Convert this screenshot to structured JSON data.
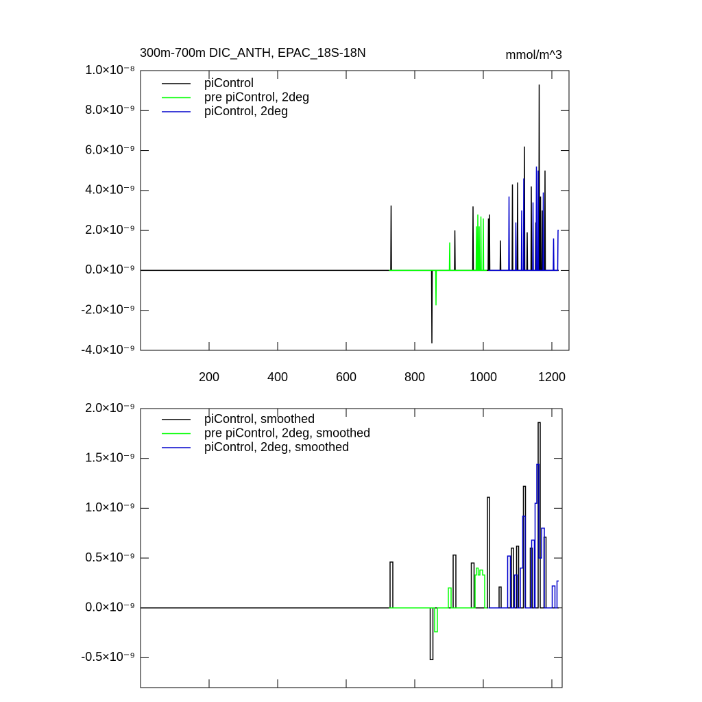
{
  "chart_data": [
    {
      "type": "line",
      "title": "300m-700m DIC_ANTH, EPAC_18S-18N",
      "y_units": "mmol/m^3",
      "xlim": [
        0,
        1250
      ],
      "xticks": [
        200,
        400,
        600,
        800,
        1000,
        1200
      ],
      "ylim": [
        -4e-09,
        1e-08
      ],
      "yticks": [
        {
          "value": -4e-09,
          "label": "-4.0×10⁻⁹"
        },
        {
          "value": -2e-09,
          "label": "-2.0×10⁻⁹"
        },
        {
          "value": 0,
          "label": "0.0×10⁻⁹"
        },
        {
          "value": 2e-09,
          "label": "2.0×10⁻⁹"
        },
        {
          "value": 4e-09,
          "label": "4.0×10⁻⁹"
        },
        {
          "value": 6e-09,
          "label": "6.0×10⁻⁹"
        },
        {
          "value": 8e-09,
          "label": "8.0×10⁻⁹"
        },
        {
          "value": 1e-08,
          "label": "1.0×10⁻⁸"
        }
      ],
      "series": [
        {
          "name": "piControl",
          "color": "#000000",
          "x": [
            0,
            730,
            731,
            732,
            849,
            850,
            851,
            916,
            917,
            918,
            969,
            970,
            971,
            1014,
            1015,
            1016,
            1017,
            1018,
            1019,
            1049,
            1050,
            1051,
            1084,
            1085,
            1086,
            1099,
            1100,
            1101,
            1119,
            1120,
            1121,
            1127,
            1128,
            1129,
            1139,
            1140,
            1141,
            1152,
            1153,
            1154,
            1162,
            1163,
            1164,
            1166,
            1167,
            1168,
            1171,
            1172,
            1173,
            1179,
            1180,
            1181,
            1220
          ],
          "values": [
            0,
            0,
            3.25e-09,
            0,
            0,
            -3.65e-09,
            0,
            0,
            2e-09,
            0,
            0,
            3.2e-09,
            0,
            0,
            2.6e-09,
            0,
            0,
            2.8e-09,
            0,
            0,
            1.5e-09,
            0,
            0,
            4.3e-09,
            0,
            0,
            4.4e-09,
            0,
            0,
            6.2e-09,
            0,
            0,
            1.9e-09,
            0,
            0,
            4.2e-09,
            0,
            0,
            2.4e-09,
            0,
            0,
            9.3e-09,
            0,
            0,
            3.7e-09,
            0,
            0,
            3e-09,
            0,
            0,
            5e-09,
            0,
            0
          ]
        },
        {
          "name": "pre piControl, 2deg",
          "color": "#00ff00",
          "x": [
            725,
            861,
            862,
            863,
            901,
            902,
            903,
            979,
            980,
            981,
            983,
            984,
            985,
            987,
            988,
            989,
            992,
            993,
            994,
            999,
            1000,
            1001,
            1010
          ],
          "values": [
            0,
            0,
            -1.75e-09,
            0,
            0,
            1.4e-09,
            0,
            0,
            2.2e-09,
            0,
            0,
            2.8e-09,
            0,
            0,
            2.2e-09,
            0,
            0,
            2.7e-09,
            0,
            0,
            2.6e-09,
            0,
            0
          ]
        },
        {
          "name": "piControl, 2deg",
          "color": "#0000cc",
          "x": [
            1015,
            1074,
            1075,
            1076,
            1094,
            1095,
            1096,
            1111,
            1112,
            1113,
            1117,
            1118,
            1119,
            1144,
            1145,
            1146,
            1154,
            1155,
            1156,
            1159,
            1160,
            1161,
            1174,
            1175,
            1176,
            1204,
            1205,
            1206,
            1217,
            1218,
            1220
          ],
          "values": [
            0,
            0,
            3.7e-09,
            0,
            0,
            2.4e-09,
            0,
            0,
            3e-09,
            0,
            0,
            4.6e-09,
            0,
            0,
            3.4e-09,
            0,
            0,
            5.2e-09,
            0,
            0,
            5e-09,
            0,
            0,
            3.9e-09,
            0,
            0,
            1.6e-09,
            0,
            0,
            2e-09,
            2e-09
          ]
        }
      ]
    },
    {
      "type": "line",
      "xlim": [
        0,
        1230
      ],
      "xticks": [
        200,
        400,
        600,
        800,
        1000,
        1200
      ],
      "ylim": [
        -8e-10,
        2e-09
      ],
      "yticks": [
        {
          "value": -5e-10,
          "label": "-0.5×10⁻⁹"
        },
        {
          "value": 0,
          "label": "0.0×10⁻⁹"
        },
        {
          "value": 5e-10,
          "label": "0.5×10⁻⁹"
        },
        {
          "value": 1e-09,
          "label": "1.0×10⁻⁹"
        },
        {
          "value": 1.5e-09,
          "label": "1.5×10⁻⁹"
        },
        {
          "value": 2e-09,
          "label": "2.0×10⁻⁹"
        }
      ],
      "series": [
        {
          "name": "piControl, smoothed",
          "color": "#000000",
          "x": [
            0,
            728,
            728,
            736,
            736,
            845,
            845,
            853,
            853,
            912,
            912,
            920,
            920,
            965,
            965,
            973,
            973,
            1012,
            1012,
            1018,
            1018,
            1046,
            1046,
            1052,
            1052,
            1082,
            1082,
            1088,
            1088,
            1097,
            1097,
            1103,
            1103,
            1117,
            1117,
            1123,
            1123,
            1137,
            1137,
            1143,
            1143,
            1160,
            1160,
            1166,
            1166,
            1177,
            1177,
            1183,
            1183,
            1220
          ],
          "values": [
            0,
            0,
            4.6e-10,
            4.6e-10,
            0,
            0,
            -5.2e-10,
            -5.2e-10,
            0,
            0,
            5.3e-10,
            5.3e-10,
            0,
            0,
            4.5e-10,
            4.5e-10,
            0,
            0,
            1.11e-09,
            1.11e-09,
            0,
            0,
            2.1e-10,
            2.1e-10,
            0,
            0,
            6e-10,
            6e-10,
            0,
            0,
            6.2e-10,
            6.2e-10,
            0,
            0,
            1.22e-09,
            1.22e-09,
            0,
            0,
            6e-10,
            6e-10,
            0,
            0,
            1.86e-09,
            1.86e-09,
            0,
            0,
            7.1e-10,
            7.1e-10,
            0,
            0
          ]
        },
        {
          "name": "pre piControl, 2deg, smoothed",
          "color": "#00ff00",
          "x": [
            725,
            858,
            858,
            866,
            866,
            898,
            898,
            906,
            906,
            976,
            976,
            980,
            980,
            985,
            985,
            990,
            990,
            998,
            998,
            1004,
            1004,
            1010
          ],
          "values": [
            0,
            0,
            -2.4e-10,
            -2.4e-10,
            0,
            0,
            2e-10,
            2e-10,
            0,
            0,
            3.3e-10,
            3.3e-10,
            4e-10,
            4e-10,
            3.3e-10,
            3.3e-10,
            3.8e-10,
            3.8e-10,
            3.3e-10,
            3.3e-10,
            0,
            0
          ]
        },
        {
          "name": "piControl, 2deg, smoothed",
          "color": "#0000cc",
          "x": [
            1015,
            1071,
            1071,
            1079,
            1079,
            1091,
            1091,
            1099,
            1099,
            1108,
            1108,
            1115,
            1115,
            1122,
            1122,
            1141,
            1141,
            1149,
            1149,
            1151,
            1151,
            1156,
            1156,
            1162,
            1162,
            1170,
            1170,
            1178,
            1178,
            1201,
            1201,
            1209,
            1209,
            1215,
            1215,
            1220
          ],
          "values": [
            0,
            0,
            5.2e-10,
            5.2e-10,
            0,
            0,
            3.3e-10,
            3.3e-10,
            0,
            0,
            4e-10,
            4e-10,
            9.2e-10,
            9.2e-10,
            0,
            0,
            6.8e-10,
            6.8e-10,
            0,
            0,
            1.05e-09,
            1.05e-09,
            1.44e-09,
            1.44e-09,
            5e-10,
            5e-10,
            8e-10,
            8e-10,
            0,
            0,
            2.2e-10,
            2.2e-10,
            0,
            0,
            2.7e-10,
            2.7e-10
          ]
        }
      ]
    }
  ]
}
